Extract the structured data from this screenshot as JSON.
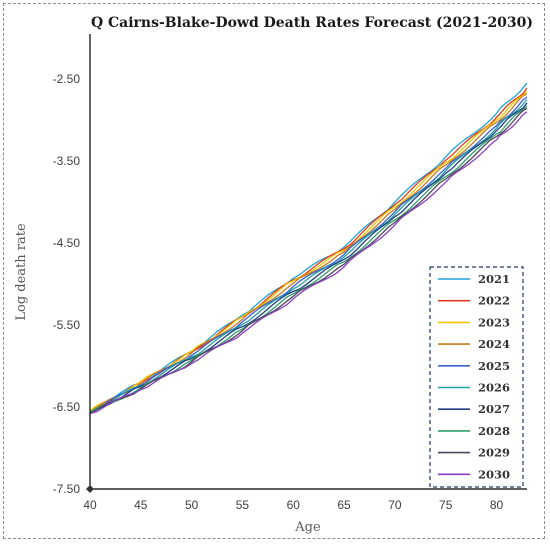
{
  "chart_data": {
    "type": "line",
    "title": "Q Cairns-Blake-Dowd Death Rates Forecast (2021-2030)",
    "xlabel": "Age",
    "ylabel": "Log death rate",
    "xlim": [
      40,
      83
    ],
    "ylim": [
      -7.5,
      -2.0
    ],
    "xticks": [
      40,
      45,
      50,
      55,
      60,
      65,
      70,
      75,
      80
    ],
    "yticks": [
      -7.5,
      -6.5,
      -5.5,
      -4.5,
      -3.5,
      -2.5
    ],
    "ytick_labels": [
      "-7.50",
      "-6.50",
      "-5.50",
      "-4.50",
      "-3.50",
      "-2.50"
    ],
    "grid": false,
    "legend_position": "bottom-right",
    "x": [
      40,
      45,
      50,
      55,
      60,
      65,
      70,
      75,
      80,
      83
    ],
    "series": [
      {
        "name": "2021",
        "color": "#1fa4d8",
        "values": [
          -6.55,
          -6.2,
          -5.82,
          -5.38,
          -4.93,
          -4.55,
          -4.0,
          -3.45,
          -2.92,
          -2.55
        ]
      },
      {
        "name": "2022",
        "color": "#e03a1e",
        "values": [
          -6.55,
          -6.21,
          -5.83,
          -5.4,
          -4.95,
          -4.57,
          -4.03,
          -3.49,
          -2.97,
          -2.61
        ]
      },
      {
        "name": "2023",
        "color": "#f2c500",
        "values": [
          -6.55,
          -6.19,
          -5.82,
          -5.4,
          -4.96,
          -4.59,
          -4.06,
          -3.52,
          -3.0,
          -2.65
        ]
      },
      {
        "name": "2024",
        "color": "#c9781a",
        "values": [
          -6.56,
          -6.21,
          -5.84,
          -5.43,
          -4.99,
          -4.61,
          -4.09,
          -3.55,
          -3.03,
          -2.68
        ]
      },
      {
        "name": "2025",
        "color": "#3f5fd0",
        "values": [
          -6.56,
          -6.23,
          -5.87,
          -5.46,
          -5.03,
          -4.64,
          -4.12,
          -3.59,
          -3.07,
          -2.72
        ]
      },
      {
        "name": "2026",
        "color": "#21a0a4",
        "values": [
          -6.56,
          -6.24,
          -5.89,
          -5.49,
          -5.06,
          -4.67,
          -4.15,
          -3.62,
          -3.1,
          -2.75
        ]
      },
      {
        "name": "2027",
        "color": "#1f3f8a",
        "values": [
          -6.57,
          -6.25,
          -5.91,
          -5.52,
          -5.09,
          -4.7,
          -4.18,
          -3.65,
          -3.13,
          -2.79
        ]
      },
      {
        "name": "2028",
        "color": "#2f9e6a",
        "values": [
          -6.57,
          -6.27,
          -5.93,
          -5.55,
          -5.12,
          -4.73,
          -4.22,
          -3.69,
          -3.17,
          -2.83
        ]
      },
      {
        "name": "2029",
        "color": "#4a4a5a",
        "values": [
          -6.58,
          -6.28,
          -5.95,
          -5.57,
          -5.15,
          -4.76,
          -4.25,
          -3.72,
          -3.2,
          -2.86
        ]
      },
      {
        "name": "2030",
        "color": "#8a3fc0",
        "values": [
          -6.58,
          -6.29,
          -5.97,
          -5.6,
          -5.18,
          -4.79,
          -4.28,
          -3.76,
          -3.24,
          -2.9
        ]
      }
    ]
  }
}
